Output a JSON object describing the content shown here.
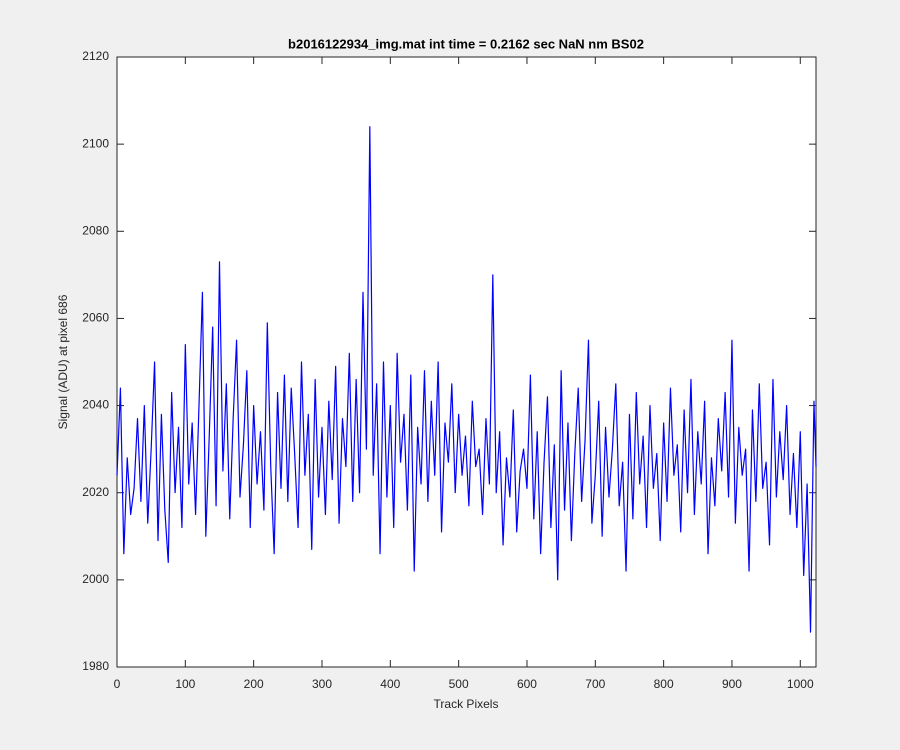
{
  "chart_data": {
    "type": "line",
    "title": "b2016122934_img.mat int time = 0.2162 sec  NaN nm BS02",
    "x_label": "Track Pixels",
    "y_label": "Signal (ADU) at pixel 686",
    "color": "#0000ff",
    "xlim": [
      0,
      1023
    ],
    "xticks": [
      0,
      100,
      200,
      300,
      400,
      500,
      600,
      700,
      800,
      900,
      1000
    ],
    "ylim": [
      1980,
      2120
    ],
    "yticks": [
      1980,
      2000,
      2020,
      2040,
      2060,
      2080,
      2100,
      2120
    ],
    "grid": false,
    "x": [
      0,
      5,
      10,
      15,
      20,
      25,
      30,
      35,
      40,
      45,
      50,
      55,
      60,
      65,
      70,
      75,
      80,
      85,
      90,
      95,
      100,
      105,
      110,
      115,
      120,
      125,
      130,
      135,
      140,
      145,
      150,
      155,
      160,
      165,
      170,
      175,
      180,
      185,
      190,
      195,
      200,
      205,
      210,
      215,
      220,
      225,
      230,
      235,
      240,
      245,
      250,
      255,
      260,
      265,
      270,
      275,
      280,
      285,
      290,
      295,
      300,
      305,
      310,
      315,
      320,
      325,
      330,
      335,
      340,
      345,
      350,
      355,
      360,
      365,
      370,
      375,
      380,
      385,
      390,
      395,
      400,
      405,
      410,
      415,
      420,
      425,
      430,
      435,
      440,
      445,
      450,
      455,
      460,
      465,
      470,
      475,
      480,
      485,
      490,
      495,
      500,
      505,
      510,
      515,
      520,
      525,
      530,
      535,
      540,
      545,
      550,
      555,
      560,
      565,
      570,
      575,
      580,
      585,
      590,
      595,
      600,
      605,
      610,
      615,
      620,
      625,
      630,
      635,
      640,
      645,
      650,
      655,
      660,
      665,
      670,
      675,
      680,
      685,
      690,
      695,
      700,
      705,
      710,
      715,
      720,
      725,
      730,
      735,
      740,
      745,
      750,
      755,
      760,
      765,
      770,
      775,
      780,
      785,
      790,
      795,
      800,
      805,
      810,
      815,
      820,
      825,
      830,
      835,
      840,
      845,
      850,
      855,
      860,
      865,
      870,
      875,
      880,
      885,
      890,
      895,
      900,
      905,
      910,
      915,
      920,
      925,
      930,
      935,
      940,
      945,
      950,
      955,
      960,
      965,
      970,
      975,
      980,
      985,
      990,
      995,
      1000,
      1005,
      1010,
      1015,
      1020,
      1023
    ],
    "values": [
      2024,
      2044,
      2006,
      2028,
      2015,
      2021,
      2037,
      2018,
      2040,
      2013,
      2030,
      2050,
      2009,
      2038,
      2016,
      2004,
      2043,
      2020,
      2035,
      2012,
      2054,
      2022,
      2036,
      2015,
      2040,
      2066,
      2010,
      2033,
      2058,
      2017,
      2073,
      2025,
      2045,
      2014,
      2037,
      2055,
      2019,
      2031,
      2048,
      2012,
      2040,
      2022,
      2034,
      2016,
      2059,
      2026,
      2006,
      2043,
      2021,
      2047,
      2018,
      2044,
      2029,
      2012,
      2050,
      2024,
      2038,
      2007,
      2046,
      2019,
      2035,
      2015,
      2041,
      2023,
      2049,
      2013,
      2037,
      2026,
      2052,
      2018,
      2046,
      2020,
      2066,
      2030,
      2104,
      2024,
      2045,
      2006,
      2050,
      2019,
      2040,
      2012,
      2052,
      2027,
      2038,
      2016,
      2047,
      2002,
      2035,
      2022,
      2048,
      2018,
      2041,
      2024,
      2050,
      2011,
      2036,
      2027,
      2045,
      2020,
      2038,
      2024,
      2033,
      2017,
      2041,
      2026,
      2030,
      2015,
      2037,
      2022,
      2070,
      2020,
      2034,
      2008,
      2028,
      2019,
      2039,
      2011,
      2025,
      2030,
      2021,
      2047,
      2014,
      2034,
      2006,
      2027,
      2042,
      2012,
      2031,
      2000,
      2048,
      2016,
      2036,
      2009,
      2029,
      2044,
      2018,
      2032,
      2055,
      2013,
      2024,
      2041,
      2010,
      2035,
      2019,
      2030,
      2045,
      2017,
      2027,
      2002,
      2038,
      2014,
      2043,
      2022,
      2033,
      2012,
      2040,
      2021,
      2029,
      2009,
      2036,
      2018,
      2044,
      2024,
      2031,
      2011,
      2039,
      2020,
      2046,
      2015,
      2034,
      2022,
      2041,
      2006,
      2028,
      2017,
      2037,
      2025,
      2043,
      2019,
      2055,
      2013,
      2035,
      2024,
      2030,
      2002,
      2039,
      2018,
      2045,
      2021,
      2027,
      2008,
      2046,
      2019,
      2034,
      2023,
      2040,
      2015,
      2029,
      2012,
      2034,
      2001,
      2022,
      1988,
      2041,
      2026
    ]
  }
}
